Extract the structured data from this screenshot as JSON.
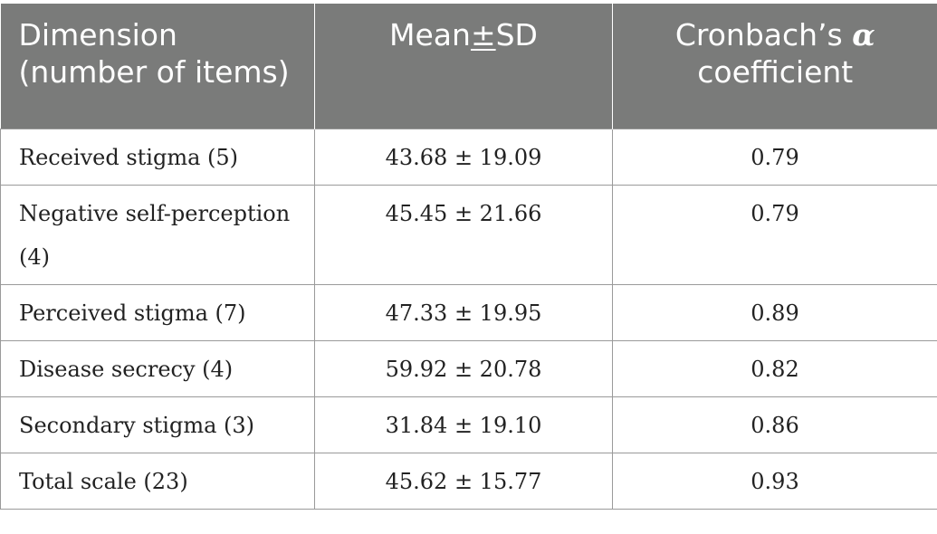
{
  "table": {
    "headers": {
      "col1": "Dimension (number of items)",
      "col2_prefix": "Mean",
      "col2_pm": "±",
      "col2_suffix": "SD",
      "col3_prefix": "Cronbach’s ",
      "col3_symbol": "α",
      "col3_suffix": "coefficient"
    },
    "rows": [
      {
        "dimension": "Received stigma (5)",
        "mean_sd": "43.68 ± 19.09",
        "alpha": "0.79"
      },
      {
        "dimension": "Negative self-perception (4)",
        "mean_sd": "45.45 ± 21.66",
        "alpha": "0.79"
      },
      {
        "dimension": "Perceived stigma (7)",
        "mean_sd": "47.33 ± 19.95",
        "alpha": "0.89"
      },
      {
        "dimension": "Disease secrecy (4)",
        "mean_sd": "59.92 ± 20.78",
        "alpha": "0.82"
      },
      {
        "dimension": "Secondary stigma (3)",
        "mean_sd": "31.84 ± 19.10",
        "alpha": "0.86"
      },
      {
        "dimension": "Total scale (23)",
        "mean_sd": "45.62 ± 15.77",
        "alpha": "0.93"
      }
    ]
  }
}
